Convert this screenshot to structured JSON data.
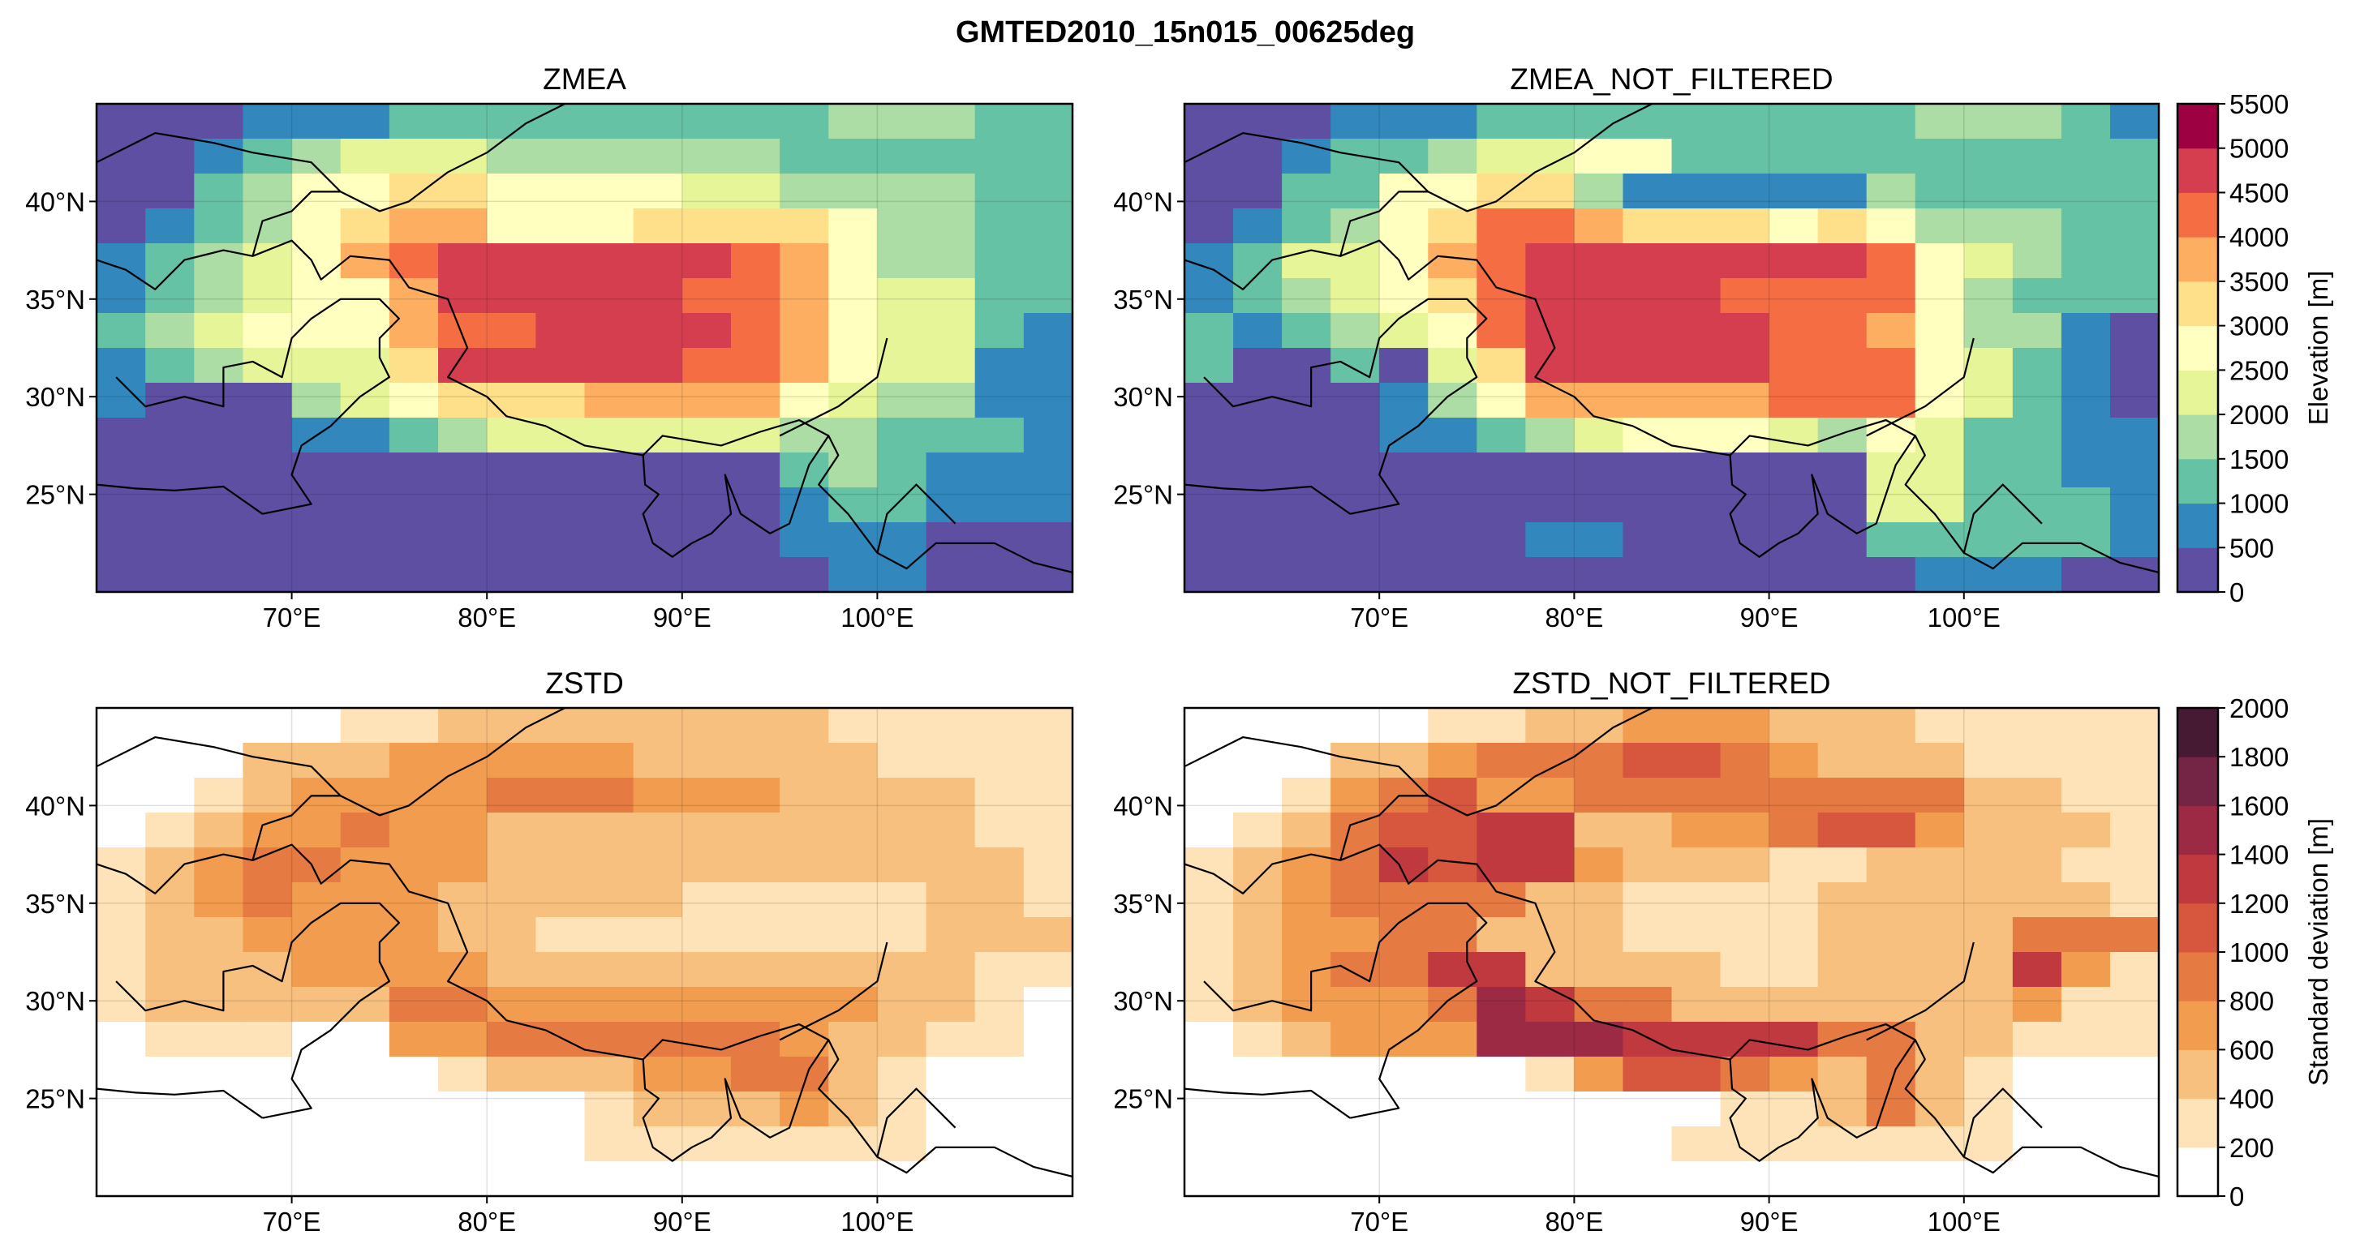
{
  "figure": {
    "title": "GMTED2010_15n015_00625deg"
  },
  "colorbars": {
    "elevation": {
      "label": "Elevation [m]",
      "levels": [
        0,
        500,
        1000,
        1500,
        2000,
        2500,
        3000,
        3500,
        4000,
        4500,
        5000,
        5500
      ],
      "tick_labels": [
        "0",
        "500",
        "1000",
        "1500",
        "2000",
        "2500",
        "3000",
        "3500",
        "4000",
        "4500",
        "5000",
        "5500"
      ],
      "colors": [
        "#5e4fa2",
        "#3288bd",
        "#66c2a5",
        "#abdda4",
        "#e6f598",
        "#ffffbf",
        "#fee08b",
        "#fdae61",
        "#f46d43",
        "#d53e4f",
        "#9e0142"
      ]
    },
    "stddev": {
      "label": "Standard deviation [m]",
      "levels": [
        0,
        200,
        400,
        600,
        800,
        1000,
        1200,
        1400,
        1600,
        1800,
        2000
      ],
      "tick_labels": [
        "0",
        "200",
        "400",
        "600",
        "800",
        "1000",
        "1200",
        "1400",
        "1600",
        "1800",
        "2000"
      ],
      "colors": [
        "#ffffff",
        "#fde3b7",
        "#f7c07f",
        "#f19c4e",
        "#e57a42",
        "#d6573e",
        "#c0393f",
        "#9d2a45",
        "#742445",
        "#461a33"
      ]
    }
  },
  "chart_data": [
    {
      "type": "heatmap",
      "title": "ZMEA",
      "colorbar": "elevation",
      "xlabel": "",
      "ylabel": "",
      "xlim": [
        60,
        110
      ],
      "ylim": [
        20,
        45
      ],
      "xticks": [
        70,
        80,
        90,
        100
      ],
      "xtick_labels": [
        "70°E",
        "80°E",
        "90°E",
        "100°E"
      ],
      "yticks": [
        25,
        30,
        35,
        40
      ],
      "ytick_labels": [
        "25°N",
        "30°N",
        "35°N",
        "40°N"
      ],
      "grid": true,
      "cell_deg": 2.5,
      "rows_north_to_south": [
        "00011122222222233322",
        "00123444333333222222",
        "00235566555544333322",
        "01235677555666653322",
        "12345789999998753322",
        "12345579999988754422",
        "23455578899998754421",
        "12344469999988754411",
        "10003456667777543311",
        "00001123444444332221",
        "00000000000000232111",
        "00000000000000122111",
        "00000000000000111000",
        "00000000000000011000"
      ]
    },
    {
      "type": "heatmap",
      "title": "ZMEA_NOT_FILTERED",
      "colorbar": "elevation",
      "xlabel": "",
      "ylabel": "",
      "xlim": [
        60,
        110
      ],
      "ylim": [
        20,
        45
      ],
      "xticks": [
        70,
        80,
        90,
        100
      ],
      "xtick_labels": [
        "70°E",
        "80°E",
        "90°E",
        "100°E"
      ],
      "yticks": [
        25,
        30,
        35,
        40
      ],
      "ytick_labels": [
        "25°N",
        "30°N",
        "35°N",
        "40°N"
      ],
      "grid": true,
      "cell_deg": 2.5,
      "rows_north_to_south": [
        "00011122222222233321",
        "00122344552222222222",
        "00225566311111322222",
        "01235688766656533322",
        "12445789999999854322",
        "12345689999888853222",
        "21234589999988753310",
        "20020469999988854210",
        "00001357777788854210",
        "00001123455543542211",
        "00000000000000442211",
        "00000000000000442221",
        "00000001100000222221",
        "00000000000000011100"
      ]
    },
    {
      "type": "heatmap",
      "title": "ZSTD",
      "colorbar": "stddev",
      "xlabel": "",
      "ylabel": "",
      "xlim": [
        60,
        110
      ],
      "ylim": [
        20,
        45
      ],
      "xticks": [
        70,
        80,
        90,
        100
      ],
      "xtick_labels": [
        "70°E",
        "80°E",
        "90°E",
        "100°E"
      ],
      "yticks": [
        25,
        30,
        35,
        40
      ],
      "ytick_labels": [
        "25°N",
        "30°N",
        "35°N",
        "40°N"
      ],
      "grid": true,
      "cell_deg": 2.5,
      "rows_north_to_south": [
        "00000112222222211111",
        "00022233333222221111",
        "00123333444333222211",
        "01233433222222222211",
        "12344333222222222221",
        "12343332222211111221",
        "12233332211111111222",
        "12223333222222222211",
        "12222244333333332210",
        "01110033444444322110",
        "00000001222334421000",
        "00000000001222321000",
        "00000000001111111000",
        "00000000000000000000"
      ]
    },
    {
      "type": "heatmap",
      "title": "ZSTD_NOT_FILTERED",
      "colorbar": "stddev",
      "xlabel": "",
      "ylabel": "",
      "xlim": [
        60,
        110
      ],
      "ylim": [
        20,
        45
      ],
      "xticks": [
        70,
        80,
        90,
        100
      ],
      "xtick_labels": [
        "70°E",
        "80°E",
        "90°E",
        "100°E"
      ],
      "yticks": [
        25,
        30,
        35,
        40
      ],
      "ytick_labels": [
        "25°N",
        "30°N",
        "35°N",
        "40°N"
      ],
      "grid": true,
      "cell_deg": 2.5,
      "rows_north_to_south": [
        "00000112233322211111",
        "00022344455432221111",
        "00134533444444442211",
        "01245566223345532221",
        "12346566322211222211",
        "12344442211112222221",
        "12334422211112222444",
        "12344662222112222631",
        "12333476442222222311",
        "01233377766664422111",
        "00000001355432421000",
        "00000000000112421000",
        "00000000001111111000",
        "00000000000000000000"
      ]
    }
  ]
}
